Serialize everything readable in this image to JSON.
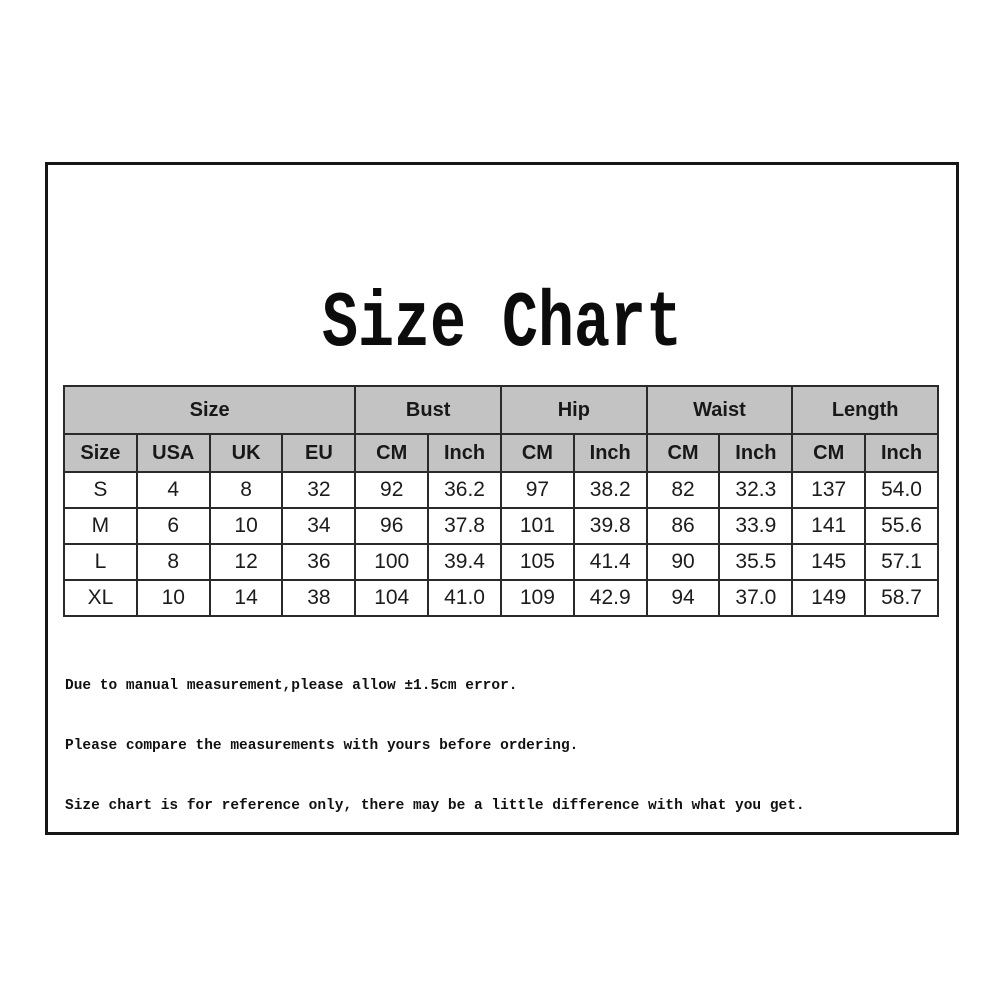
{
  "page": {
    "title": "Size Chart"
  },
  "table": {
    "group_headers": [
      {
        "label": "Size",
        "span": 4
      },
      {
        "label": "Bust",
        "span": 2
      },
      {
        "label": "Hip",
        "span": 2
      },
      {
        "label": "Waist",
        "span": 2
      },
      {
        "label": "Length",
        "span": 2
      }
    ],
    "sub_headers": [
      "Size",
      "USA",
      "UK",
      "EU",
      "CM",
      "Inch",
      "CM",
      "Inch",
      "CM",
      "Inch",
      "CM",
      "Inch"
    ],
    "rows": [
      [
        "S",
        "4",
        "8",
        "32",
        "92",
        "36.2",
        "97",
        "38.2",
        "82",
        "32.3",
        "137",
        "54.0"
      ],
      [
        "M",
        "6",
        "10",
        "34",
        "96",
        "37.8",
        "101",
        "39.8",
        "86",
        "33.9",
        "141",
        "55.6"
      ],
      [
        "L",
        "8",
        "12",
        "36",
        "100",
        "39.4",
        "105",
        "41.4",
        "90",
        "35.5",
        "145",
        "57.1"
      ],
      [
        "XL",
        "10",
        "14",
        "38",
        "104",
        "41.0",
        "109",
        "42.9",
        "94",
        "37.0",
        "149",
        "58.7"
      ]
    ]
  },
  "notes": [
    "Due to manual measurement,please allow ±1.5cm error.",
    "Please compare the measurements with yours before ordering.",
    "Size chart is for reference only, there may be a little difference with what you get."
  ],
  "colors": {
    "header_bg": "#c3c3c3",
    "grid_border": "#2a2a2a",
    "frame_border": "#161616",
    "text": "#161616",
    "background": "#ffffff"
  }
}
